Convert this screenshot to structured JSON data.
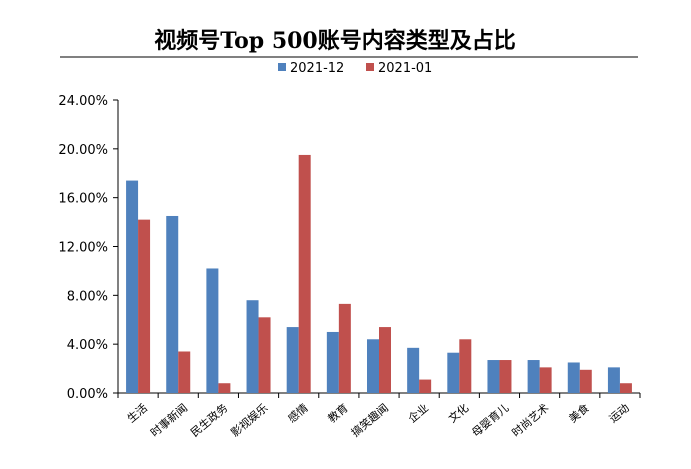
{
  "chart_data": {
    "type": "bar",
    "title": "视频号Top 500账号内容类型及占比",
    "categories": [
      "生活",
      "时事新闻",
      "民生政务",
      "影视娱乐",
      "感情",
      "教育",
      "搞笑趣闻",
      "企业",
      "文化",
      "母婴育儿",
      "时尚艺术",
      "美食",
      "运动"
    ],
    "series": [
      {
        "name": "2021-12",
        "color": "#4f81bd",
        "values": [
          17.4,
          14.5,
          10.2,
          7.6,
          5.4,
          5.0,
          4.4,
          3.7,
          3.3,
          2.7,
          2.7,
          2.5,
          2.1
        ]
      },
      {
        "name": "2021-01",
        "color": "#c0504d",
        "values": [
          14.2,
          3.4,
          0.8,
          6.2,
          19.5,
          7.3,
          5.4,
          1.1,
          4.4,
          2.7,
          2.1,
          1.9,
          0.8
        ]
      }
    ],
    "yticks": [
      "0.00%",
      "4.00%",
      "8.00%",
      "12.00%",
      "16.00%",
      "20.00%",
      "24.00%"
    ],
    "ylim": [
      0,
      24
    ],
    "legend_position": "top",
    "grid": false
  }
}
